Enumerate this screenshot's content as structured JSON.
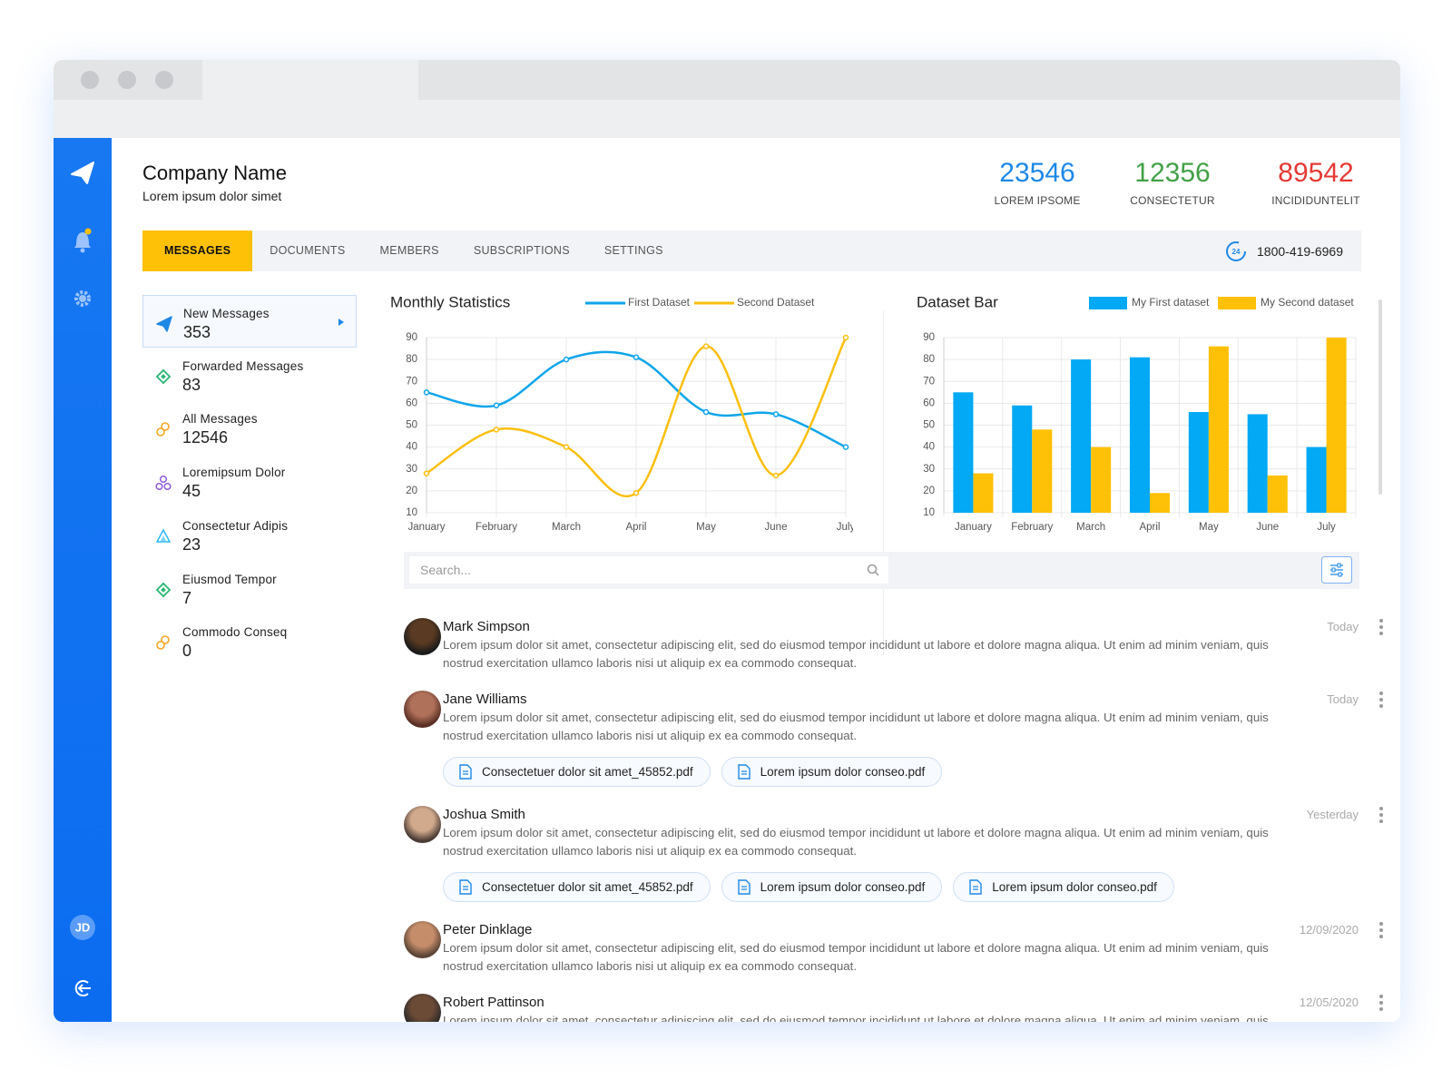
{
  "sidebar": {
    "avatar_initials": "JD"
  },
  "header": {
    "title": "Company Name",
    "subtitle": "Lorem ipsum dolor simet",
    "stats": [
      {
        "value": 23546,
        "label": "LOREM IPSOME",
        "color": "#1e88e5"
      },
      {
        "value": 12356,
        "label": "CONSECTETUR",
        "color": "#43a047"
      },
      {
        "value": 89542,
        "label": "INCIDIDUNTELIT",
        "color": "#e53935"
      }
    ]
  },
  "tabs": {
    "items": [
      "MESSAGES",
      "DOCUMENTS",
      "MEMBERS",
      "SUBSCRIPTIONS",
      "SETTINGS"
    ],
    "active_index": 0,
    "phone": "1800-419-6969"
  },
  "folders": [
    {
      "label": "New Messages",
      "count": 353,
      "color": "#1e88e5"
    },
    {
      "label": "Forwarded Messages",
      "count": 83,
      "color": "#2bb673"
    },
    {
      "label": "All Messages",
      "count": 12546,
      "color": "#f5a623"
    },
    {
      "label": "Loremipsum Dolor",
      "count": 45,
      "color": "#8e5cd9"
    },
    {
      "label": "Consectetur Adipis",
      "count": 23,
      "color": "#29b6f6"
    },
    {
      "label": "Eiusmod Tempor",
      "count": 7,
      "color": "#2bb673"
    },
    {
      "label": "Commodo Conseq",
      "count": 0,
      "color": "#f5a623"
    }
  ],
  "chart_data": [
    {
      "type": "line",
      "title": "Monthly Statistics",
      "categories": [
        "January",
        "February",
        "March",
        "April",
        "May",
        "June",
        "July"
      ],
      "series": [
        {
          "name": "First Dataset",
          "color": "#0ea5e9",
          "values": [
            65,
            59,
            80,
            81,
            56,
            55,
            40
          ]
        },
        {
          "name": "Second Dataset",
          "color": "#fbbf0e",
          "values": [
            28,
            48,
            40,
            19,
            86,
            27,
            90
          ]
        }
      ],
      "ylim": [
        10,
        90
      ],
      "yticks": [
        10,
        20,
        30,
        40,
        50,
        60,
        70,
        80,
        90
      ],
      "grid": true
    },
    {
      "type": "bar",
      "title": "Dataset Bar",
      "categories": [
        "January",
        "February",
        "March",
        "April",
        "May",
        "June",
        "July"
      ],
      "series": [
        {
          "name": "My First dataset",
          "color": "#03a9f4",
          "values": [
            65,
            59,
            80,
            81,
            56,
            55,
            40
          ]
        },
        {
          "name": "My Second dataset",
          "color": "#ffc107",
          "values": [
            28,
            48,
            40,
            19,
            86,
            27,
            90
          ]
        }
      ],
      "ylim": [
        10,
        90
      ],
      "yticks": [
        10,
        20,
        30,
        40,
        50,
        60,
        70,
        80,
        90
      ],
      "grid": true
    }
  ],
  "search": {
    "placeholder": "Search..."
  },
  "messages": [
    {
      "name": "Mark Simpson",
      "date": "Today",
      "text": "Lorem ipsum dolor sit amet, consectetur adipiscing elit, sed do eiusmod tempor incididunt ut labore et dolore magna aliqua. Ut enim ad minim veniam, quis nostrud exercitation ullamco laboris nisi ut aliquip ex ea commodo consequat.",
      "attachments": []
    },
    {
      "name": "Jane Williams",
      "date": "Today",
      "text": "Lorem ipsum dolor sit amet, consectetur adipiscing elit, sed do eiusmod tempor incididunt ut labore et dolore magna aliqua. Ut enim ad minim veniam, quis nostrud exercitation ullamco laboris nisi ut aliquip ex ea commodo consequat.",
      "attachments": [
        "Consectetuer dolor sit amet_45852.pdf",
        "Lorem ipsum dolor conseo.pdf"
      ]
    },
    {
      "name": "Joshua Smith",
      "date": "Yesterday",
      "text": "Lorem ipsum dolor sit amet, consectetur adipiscing elit, sed do eiusmod tempor incididunt ut labore et dolore magna aliqua. Ut enim ad minim veniam, quis nostrud exercitation ullamco laboris nisi ut aliquip ex ea commodo consequat.",
      "attachments": [
        "Consectetuer dolor sit amet_45852.pdf",
        "Lorem ipsum dolor conseo.pdf",
        "Lorem ipsum dolor conseo.pdf"
      ]
    },
    {
      "name": "Peter Dinklage",
      "date": "12/09/2020",
      "text": "Lorem ipsum dolor sit amet, consectetur adipiscing elit, sed do eiusmod tempor incididunt ut labore et dolore magna aliqua. Ut enim ad minim veniam, quis nostrud exercitation ullamco laboris nisi ut aliquip ex ea commodo consequat.",
      "attachments": []
    },
    {
      "name": "Robert Pattinson",
      "date": "12/05/2020",
      "text": "Lorem ipsum dolor sit amet, consectetur adipiscing elit, sed do eiusmod tempor incididunt ut labore et dolore magna aliqua. Ut enim ad minim veniam, quis nostrud exercitation ullamco laboris nisi ut aliquip ex ea commodo consequat.",
      "attachments": []
    }
  ]
}
